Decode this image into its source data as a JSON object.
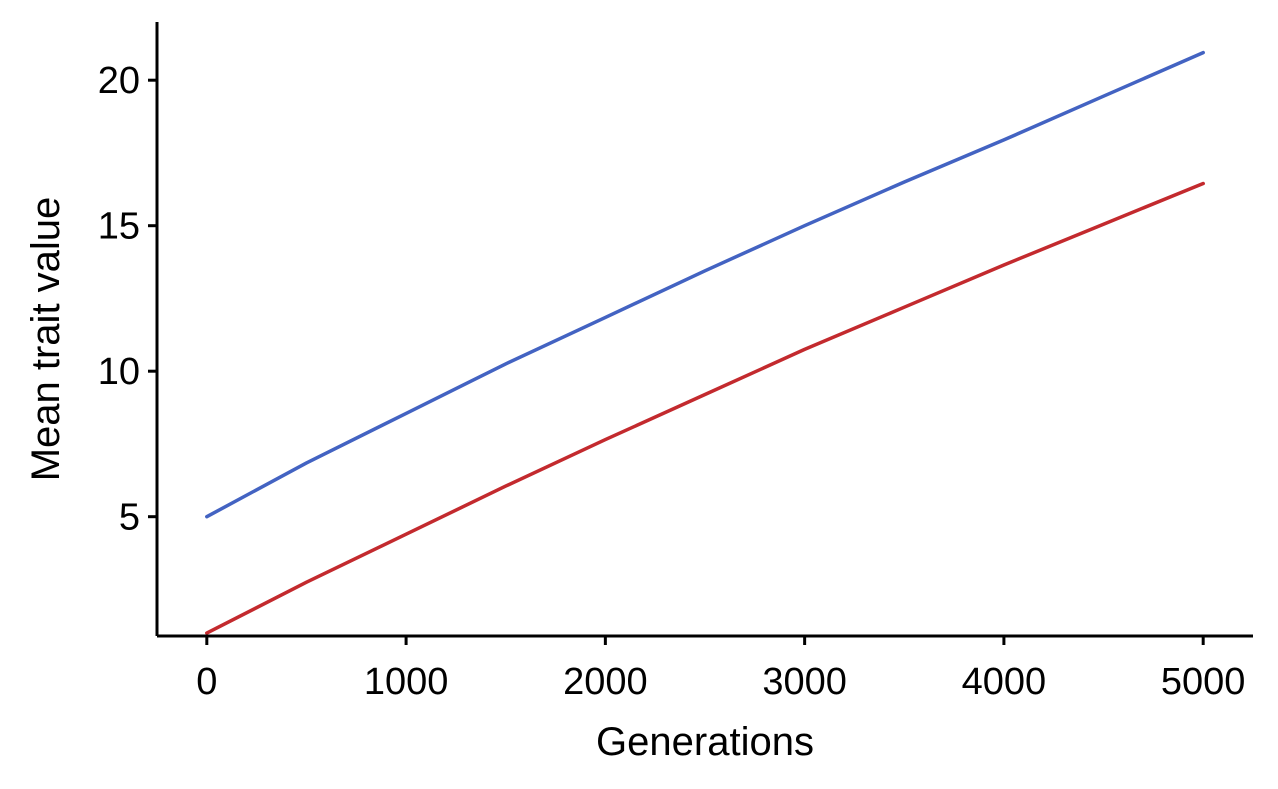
{
  "chart_data": {
    "type": "line",
    "title": "",
    "xlabel": "Generations",
    "ylabel": "Mean trait value",
    "xlim": [
      -250,
      5250
    ],
    "ylim": [
      0.9,
      22
    ],
    "xticks": [
      0,
      1000,
      2000,
      3000,
      4000,
      5000
    ],
    "xtick_labels": [
      "0",
      "1000",
      "2000",
      "3000",
      "4000",
      "5000"
    ],
    "yticks": [
      5,
      10,
      15,
      20
    ],
    "ytick_labels": [
      "5",
      "10",
      "15",
      "20"
    ],
    "grid": false,
    "legend": "none",
    "series": [
      {
        "color": "#4363c2",
        "x": [
          0,
          500,
          1000,
          1500,
          2000,
          2500,
          3000,
          3500,
          4000,
          4500,
          5000
        ],
        "y": [
          5.0,
          6.85,
          8.55,
          10.25,
          11.85,
          13.45,
          15.0,
          16.5,
          17.95,
          19.45,
          20.95
        ]
      },
      {
        "color": "#c32a2e",
        "x": [
          0,
          500,
          1000,
          1500,
          2000,
          2500,
          3000,
          3500,
          4000,
          4500,
          5000
        ],
        "y": [
          1.0,
          2.75,
          4.4,
          6.05,
          7.65,
          9.2,
          10.75,
          12.2,
          13.65,
          15.05,
          16.45
        ]
      }
    ]
  }
}
